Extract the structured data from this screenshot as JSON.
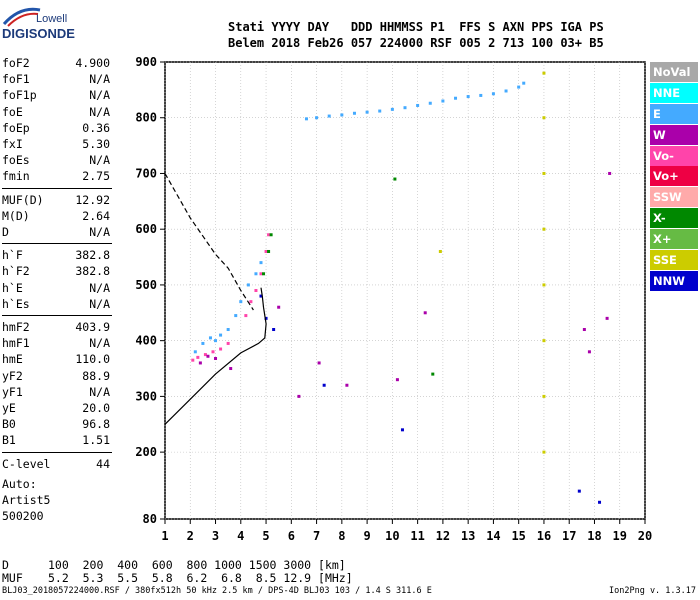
{
  "logo": {
    "line1": "Lowell",
    "line2": "DIGISONDE"
  },
  "header": {
    "labels": "Stati YYYY DAY   DDD HHMMSS P1  FFS S AXN PPS IGA PS",
    "values": "Belem 2018 Feb26 057 224000 RSF 005 2 713 100 03+ B5"
  },
  "params": [
    {
      "label": "foF2",
      "value": "4.900"
    },
    {
      "label": "foF1",
      "value": "N/A"
    },
    {
      "label": "foF1p",
      "value": "N/A"
    },
    {
      "label": "foE",
      "value": "N/A"
    },
    {
      "label": "foEp",
      "value": "0.36"
    },
    {
      "label": "fxI",
      "value": "5.30"
    },
    {
      "label": "foEs",
      "value": "N/A"
    },
    {
      "label": "fmin",
      "value": "2.75"
    },
    {
      "label": "MUF(D)",
      "value": "12.92"
    },
    {
      "label": "M(D)",
      "value": "2.64"
    },
    {
      "label": "D",
      "value": "N/A"
    },
    {
      "label": "h`F",
      "value": "382.8"
    },
    {
      "label": "h`F2",
      "value": "382.8"
    },
    {
      "label": "h`E",
      "value": "N/A"
    },
    {
      "label": "h`Es",
      "value": "N/A"
    },
    {
      "label": "hmF2",
      "value": "403.9"
    },
    {
      "label": "hmF1",
      "value": "N/A"
    },
    {
      "label": "hmE",
      "value": "110.0"
    },
    {
      "label": "yF2",
      "value": "88.9"
    },
    {
      "label": "yF1",
      "value": "N/A"
    },
    {
      "label": "yE",
      "value": "20.0"
    },
    {
      "label": "B0",
      "value": "96.8"
    },
    {
      "label": "B1",
      "value": "1.51"
    },
    {
      "label": "C-level",
      "value": "44"
    }
  ],
  "auto": [
    "Auto:",
    "Artist5",
    "500200"
  ],
  "legend": [
    {
      "label": "NoVal",
      "color": "#a8a8a8"
    },
    {
      "label": "NNE",
      "color": "#00ffff"
    },
    {
      "label": "E",
      "color": "#44aaff"
    },
    {
      "label": "W",
      "color": "#aa00aa"
    },
    {
      "label": "Vo-",
      "color": "#ff44aa"
    },
    {
      "label": "Vo+",
      "color": "#ee0044"
    },
    {
      "label": "SSW",
      "color": "#ffaaaa"
    },
    {
      "label": "X-",
      "color": "#008800"
    },
    {
      "label": "X+",
      "color": "#66bb44"
    },
    {
      "label": "SSE",
      "color": "#cccc00"
    },
    {
      "label": "NNW",
      "color": "#0000cc"
    }
  ],
  "muf_table": {
    "d_label": "D",
    "d_values": "100  200  400  600  800 1000 1500 3000 [km]",
    "m_label": "MUF",
    "m_values": "5.2  5.3  5.5  5.8  6.2  6.8  8.5 12.9 [MHz]"
  },
  "footer": {
    "left": "BLJ03_2018057224000.RSF / 380fx512h 50 kHz 2.5 km / DPS-4D BLJ03 103 / 1.4 S 311.6 E",
    "right": "Ion2Png v. 1.3.17"
  },
  "chart_data": {
    "type": "scatter",
    "title": "",
    "xlabel": "",
    "ylabel": "",
    "xlim": [
      1,
      20
    ],
    "ylim": [
      80,
      900
    ],
    "x_ticks": [
      1,
      2,
      3,
      4,
      5,
      6,
      7,
      8,
      9,
      10,
      11,
      12,
      13,
      14,
      15,
      16,
      17,
      18,
      19,
      20
    ],
    "y_ticks": [
      80,
      200,
      300,
      400,
      500,
      600,
      700,
      800,
      900
    ],
    "grid": true,
    "series": [
      {
        "name": "E",
        "color": "#44aaff",
        "points": [
          [
            2.2,
            380
          ],
          [
            2.5,
            395
          ],
          [
            2.8,
            405
          ],
          [
            3.0,
            400
          ],
          [
            3.2,
            410
          ],
          [
            3.5,
            420
          ],
          [
            3.8,
            445
          ],
          [
            4.0,
            470
          ],
          [
            4.3,
            500
          ],
          [
            4.6,
            520
          ],
          [
            4.8,
            540
          ],
          [
            6.6,
            798
          ],
          [
            7.0,
            800
          ],
          [
            7.5,
            803
          ],
          [
            8.0,
            805
          ],
          [
            8.5,
            808
          ],
          [
            9.0,
            810
          ],
          [
            9.5,
            812
          ],
          [
            10.0,
            815
          ],
          [
            10.5,
            818
          ],
          [
            11.0,
            822
          ],
          [
            11.5,
            826
          ],
          [
            12.0,
            830
          ],
          [
            12.5,
            835
          ],
          [
            13.0,
            838
          ],
          [
            13.5,
            840
          ],
          [
            14.0,
            843
          ],
          [
            14.5,
            848
          ],
          [
            15.0,
            855
          ],
          [
            15.2,
            862
          ]
        ]
      },
      {
        "name": "Vo-",
        "color": "#ff44aa",
        "points": [
          [
            2.1,
            365
          ],
          [
            2.3,
            370
          ],
          [
            2.6,
            375
          ],
          [
            2.9,
            380
          ],
          [
            3.2,
            385
          ],
          [
            3.5,
            395
          ],
          [
            4.2,
            445
          ],
          [
            4.4,
            470
          ],
          [
            4.6,
            490
          ],
          [
            4.8,
            520
          ],
          [
            5.0,
            560
          ],
          [
            5.1,
            590
          ]
        ]
      },
      {
        "name": "W",
        "color": "#aa00aa",
        "points": [
          [
            2.4,
            360
          ],
          [
            2.7,
            372
          ],
          [
            3.0,
            368
          ],
          [
            3.6,
            350
          ],
          [
            5.5,
            460
          ],
          [
            6.3,
            300
          ],
          [
            7.1,
            360
          ],
          [
            8.2,
            320
          ],
          [
            10.2,
            330
          ],
          [
            11.3,
            450
          ],
          [
            17.6,
            420
          ],
          [
            17.8,
            380
          ],
          [
            18.5,
            440
          ],
          [
            18.6,
            700
          ]
        ]
      },
      {
        "name": "X-",
        "color": "#008800",
        "points": [
          [
            4.9,
            520
          ],
          [
            5.1,
            560
          ],
          [
            5.2,
            590
          ],
          [
            10.1,
            690
          ],
          [
            11.6,
            340
          ]
        ]
      },
      {
        "name": "SSE",
        "color": "#cccc00",
        "points": [
          [
            16.0,
            880
          ],
          [
            16.0,
            800
          ],
          [
            16.0,
            700
          ],
          [
            16.0,
            600
          ],
          [
            16.0,
            500
          ],
          [
            16.0,
            400
          ],
          [
            16.0,
            300
          ],
          [
            16.0,
            200
          ],
          [
            11.9,
            560
          ]
        ]
      },
      {
        "name": "NNW",
        "color": "#0000cc",
        "points": [
          [
            4.8,
            480
          ],
          [
            5.0,
            440
          ],
          [
            5.3,
            420
          ],
          [
            7.3,
            320
          ],
          [
            10.4,
            240
          ],
          [
            17.4,
            130
          ],
          [
            18.2,
            110
          ]
        ]
      }
    ],
    "curves": [
      {
        "style": "dashed",
        "points": [
          [
            1.0,
            700
          ],
          [
            2.0,
            620
          ],
          [
            3.0,
            555
          ],
          [
            3.5,
            530
          ],
          [
            4.0,
            490
          ],
          [
            4.5,
            455
          ]
        ]
      },
      {
        "style": "solid",
        "points": [
          [
            1.0,
            250
          ],
          [
            2.0,
            295
          ],
          [
            3.0,
            340
          ],
          [
            4.0,
            378
          ],
          [
            4.7,
            395
          ],
          [
            4.95,
            405
          ],
          [
            5.0,
            430
          ],
          [
            4.9,
            460
          ],
          [
            4.85,
            480
          ],
          [
            4.8,
            495
          ]
        ]
      }
    ]
  }
}
